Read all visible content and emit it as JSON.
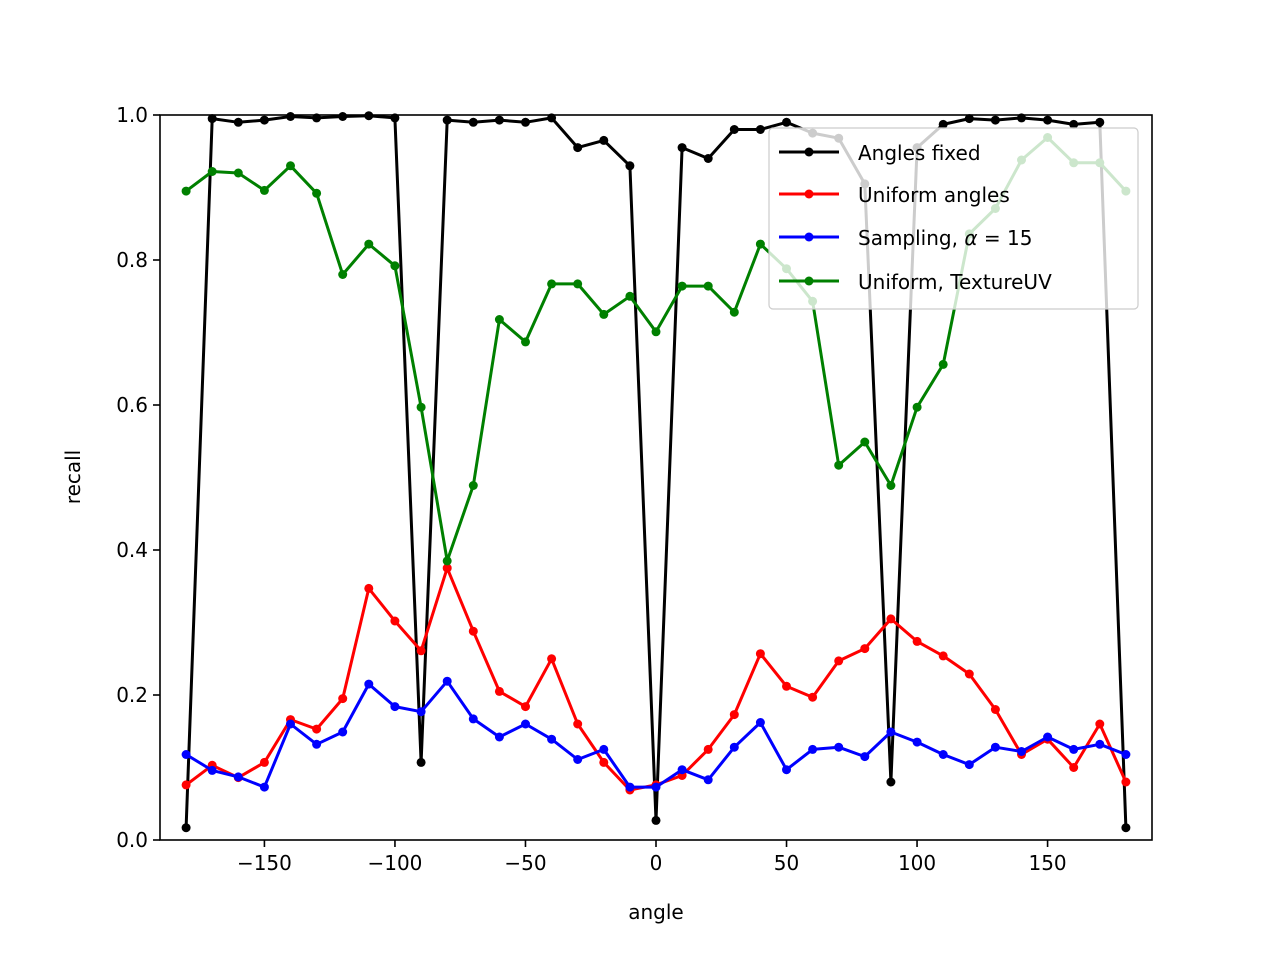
{
  "chart_data": {
    "type": "line",
    "xlabel": "angle",
    "ylabel": "recall",
    "xlim": [
      -190,
      190
    ],
    "ylim": [
      0,
      1
    ],
    "xticks": [
      -150,
      -100,
      -50,
      0,
      50,
      100,
      150
    ],
    "xtick_labels": [
      "−150",
      "−100",
      "−50",
      "0",
      "50",
      "100",
      "150"
    ],
    "yticks": [
      0,
      0.2,
      0.4,
      0.6,
      0.8,
      1.0
    ],
    "ytick_labels": [
      "0.0",
      "0.2",
      "0.4",
      "0.6",
      "0.8",
      "1.0"
    ],
    "grid": false,
    "legend_position": "top-right",
    "x": [
      -180,
      -170,
      -160,
      -150,
      -140,
      -130,
      -120,
      -110,
      -100,
      -90,
      -80,
      -70,
      -60,
      -50,
      -40,
      -30,
      -20,
      -10,
      0,
      10,
      20,
      30,
      40,
      50,
      60,
      70,
      80,
      90,
      100,
      110,
      120,
      130,
      140,
      150,
      160,
      170,
      180
    ],
    "series": [
      {
        "name": "Angles fixed",
        "color": "#000000",
        "values": [
          0.017,
          0.995,
          0.99,
          0.993,
          0.998,
          0.996,
          0.998,
          0.999,
          0.996,
          0.107,
          0.993,
          0.99,
          0.993,
          0.99,
          0.996,
          0.955,
          0.965,
          0.93,
          0.027,
          0.955,
          0.94,
          0.98,
          0.98,
          0.99,
          0.975,
          0.968,
          0.905,
          0.08,
          0.955,
          0.987,
          0.995,
          0.993,
          0.996,
          0.993,
          0.987,
          0.99,
          0.017
        ]
      },
      {
        "name": "Uniform angles",
        "color": "#ff0000",
        "values": [
          0.076,
          0.103,
          0.086,
          0.107,
          0.166,
          0.153,
          0.195,
          0.347,
          0.302,
          0.261,
          0.375,
          0.288,
          0.205,
          0.184,
          0.25,
          0.16,
          0.107,
          0.069,
          0.076,
          0.089,
          0.125,
          0.173,
          0.257,
          0.212,
          0.197,
          0.247,
          0.264,
          0.305,
          0.274,
          0.254,
          0.229,
          0.18,
          0.118,
          0.139,
          0.1,
          0.16,
          0.08
        ]
      },
      {
        "name": "Sampling, α = 15",
        "color": "#0000ff",
        "values": [
          0.118,
          0.096,
          0.087,
          0.073,
          0.16,
          0.132,
          0.149,
          0.215,
          0.184,
          0.177,
          0.219,
          0.167,
          0.142,
          0.16,
          0.139,
          0.111,
          0.125,
          0.073,
          0.073,
          0.097,
          0.083,
          0.128,
          0.162,
          0.097,
          0.125,
          0.128,
          0.115,
          0.149,
          0.135,
          0.118,
          0.104,
          0.128,
          0.122,
          0.142,
          0.125,
          0.132,
          0.118
        ]
      },
      {
        "name": "Uniform, TextureUV",
        "color": "#008000",
        "values": [
          0.895,
          0.922,
          0.92,
          0.896,
          0.93,
          0.892,
          0.78,
          0.822,
          0.792,
          0.597,
          0.385,
          0.489,
          0.718,
          0.687,
          0.767,
          0.767,
          0.725,
          0.75,
          0.701,
          0.764,
          0.764,
          0.728,
          0.822,
          0.788,
          0.743,
          0.517,
          0.549,
          0.489,
          0.597,
          0.656,
          0.836,
          0.871,
          0.938,
          0.969,
          0.934,
          0.934,
          0.895
        ]
      }
    ],
    "legend": [
      {
        "label": "Angles fixed",
        "color": "#000000"
      },
      {
        "label": "Uniform angles",
        "color": "#ff0000"
      },
      {
        "label_prefix": "Sampling, ",
        "label_math": "α",
        "label_suffix": " = 15",
        "color": "#0000ff"
      },
      {
        "label": "Uniform, TextureUV",
        "color": "#008000"
      }
    ]
  }
}
